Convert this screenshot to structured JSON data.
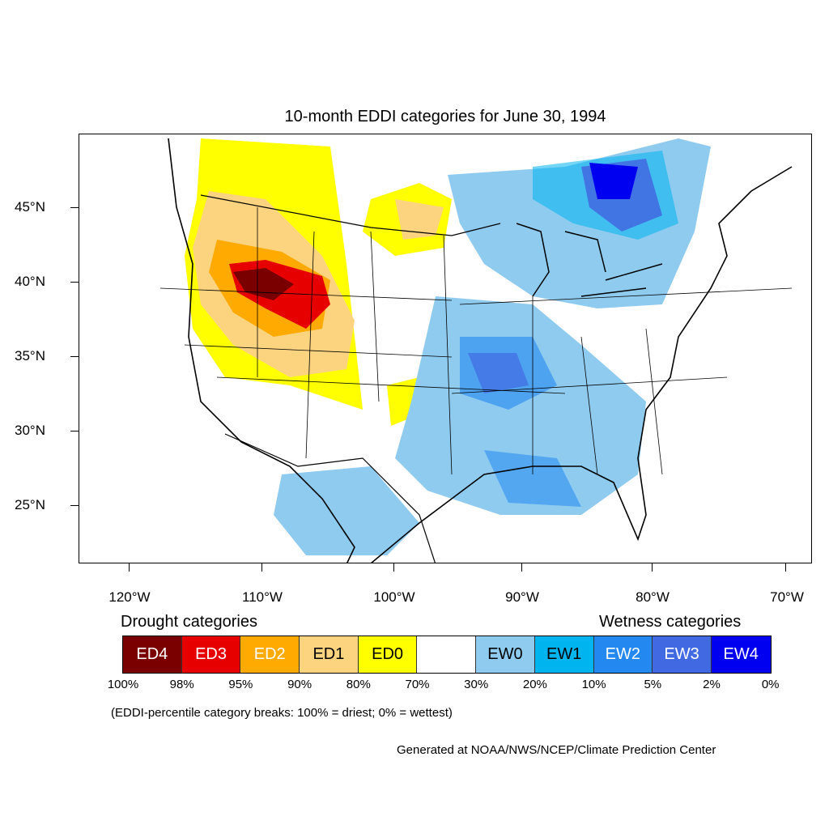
{
  "title": "10-month EDDI categories for June 30, 1994",
  "axes": {
    "lat_labels": [
      "45°N",
      "40°N",
      "35°N",
      "30°N",
      "25°N"
    ],
    "lon_labels": [
      "120°W",
      "110°W",
      "100°W",
      "90°W",
      "80°W",
      "70°W"
    ]
  },
  "legend": {
    "drought_heading": "Drought categories",
    "wetness_heading": "Wetness categories",
    "categories": [
      {
        "label": "ED4",
        "color": "#7a0000",
        "text_color": "#ffffff"
      },
      {
        "label": "ED3",
        "color": "#e60000",
        "text_color": "#ffffff"
      },
      {
        "label": "ED2",
        "color": "#ffaa00",
        "text_color": "#ffffff"
      },
      {
        "label": "ED1",
        "color": "#fcd37f",
        "text_color": "#000000"
      },
      {
        "label": "ED0",
        "color": "#ffff00",
        "text_color": "#000000"
      },
      {
        "label": "",
        "color": "#ffffff",
        "text_color": "#000000"
      },
      {
        "label": "EW0",
        "color": "#8fcbef",
        "text_color": "#000000"
      },
      {
        "label": "EW1",
        "color": "#00b4f0",
        "text_color": "#000000"
      },
      {
        "label": "EW2",
        "color": "#2389f0",
        "text_color": "#ffffff"
      },
      {
        "label": "EW3",
        "color": "#4169e1",
        "text_color": "#ffffff"
      },
      {
        "label": "EW4",
        "color": "#0000f0",
        "text_color": "#ffffff"
      }
    ],
    "percentiles": [
      "100%",
      "98%",
      "95%",
      "90%",
      "80%",
      "70%",
      "30%",
      "20%",
      "10%",
      "5%",
      "2%",
      "0%"
    ]
  },
  "note": "(EDDI-percentile category breaks: 100% = driest; 0% = wettest)",
  "credit": "Generated at NOAA/NWS/NCEP/Climate Prediction Center"
}
